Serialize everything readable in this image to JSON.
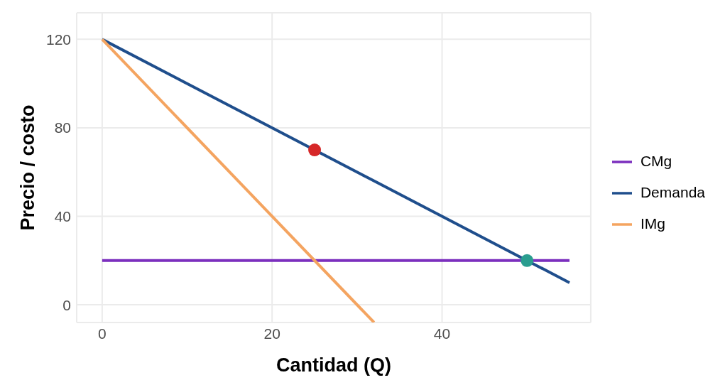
{
  "chart_data": {
    "type": "line",
    "xlabel": "Cantidad (Q)",
    "ylabel": "Precio / costo",
    "xlim": [
      -3,
      57.5
    ],
    "ylim": [
      -8,
      132
    ],
    "xticks": [
      0,
      20,
      40
    ],
    "yticks": [
      0,
      40,
      80,
      120
    ],
    "series": [
      {
        "name": "CMg",
        "color": "#7b2fbe",
        "x": [
          0,
          55
        ],
        "values": [
          20,
          20
        ],
        "marker": "none"
      },
      {
        "name": "Demanda",
        "color": "#1f4e8c",
        "x": [
          0,
          55
        ],
        "values": [
          120,
          10
        ],
        "marker": "none"
      },
      {
        "name": "IMg",
        "color": "#f4a460",
        "x": [
          0,
          32
        ],
        "values": [
          120,
          -8
        ],
        "marker": "none"
      },
      {
        "type": "scatter",
        "color": "#d62728",
        "x": [
          25
        ],
        "values": [
          70
        ],
        "marker": "circle"
      },
      {
        "type": "scatter",
        "color": "#2a9d8f",
        "x": [
          50
        ],
        "values": [
          20
        ],
        "marker": "circle"
      }
    ],
    "grid": true,
    "legend": "right"
  }
}
